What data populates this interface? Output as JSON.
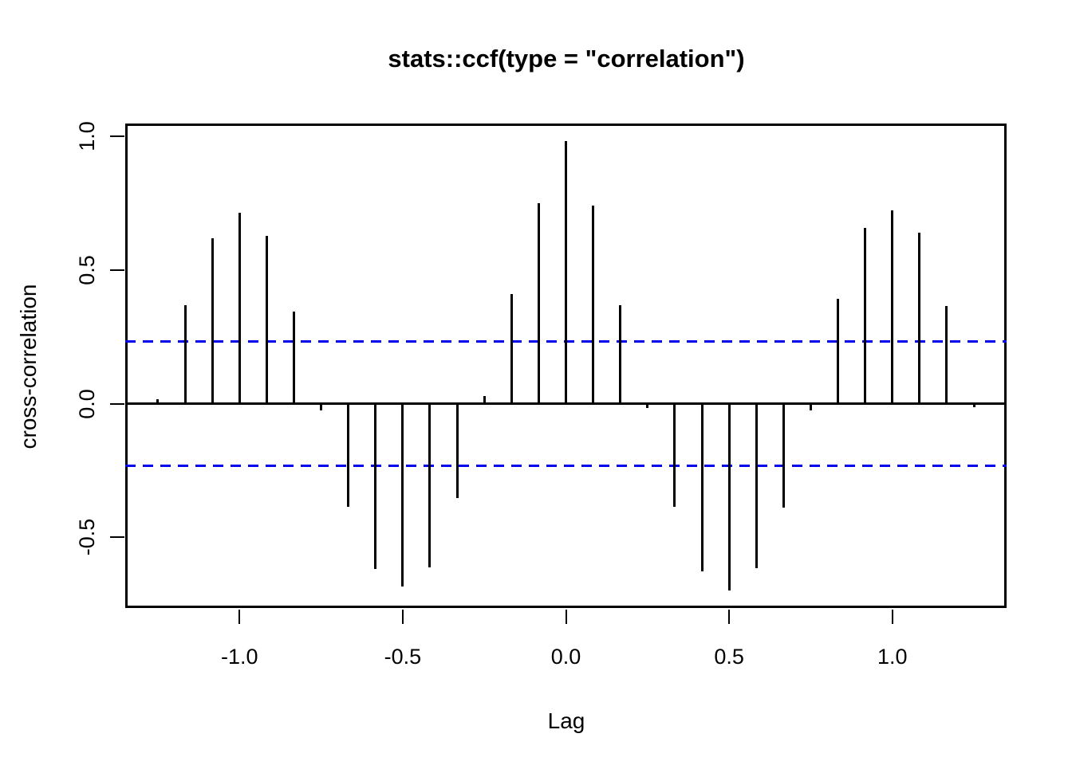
{
  "title": "stats::ccf(type = \"correlation\")",
  "chart_data": {
    "type": "bar",
    "subtype": "ccf-spike-plot",
    "title": "stats::ccf(type = \"correlation\")",
    "xlabel": "Lag",
    "ylabel": "cross-correlation",
    "x": [
      -1.25,
      -1.1667,
      -1.0833,
      -1.0,
      -0.9167,
      -0.8333,
      -0.75,
      -0.6667,
      -0.5833,
      -0.5,
      -0.4167,
      -0.3333,
      -0.25,
      -0.1667,
      -0.0833,
      0.0,
      0.0833,
      0.1667,
      0.25,
      0.3333,
      0.4167,
      0.5,
      0.5833,
      0.6667,
      0.75,
      0.8333,
      0.9167,
      1.0,
      1.0833,
      1.1667,
      1.25
    ],
    "values": [
      0.015,
      0.368,
      0.618,
      0.712,
      0.628,
      0.343,
      -0.025,
      -0.387,
      -0.617,
      -0.684,
      -0.612,
      -0.352,
      0.027,
      0.41,
      0.748,
      0.98,
      0.74,
      0.367,
      -0.015,
      -0.387,
      -0.627,
      -0.697,
      -0.616,
      -0.39,
      -0.026,
      0.392,
      0.657,
      0.723,
      0.639,
      0.364,
      -0.013
    ],
    "confidence_level": 0.231,
    "confidence_lines": [
      0.231,
      -0.231
    ],
    "xlim": [
      -1.35,
      1.35
    ],
    "ylim": [
      -0.764,
      1.047
    ],
    "xticks": [
      -1.0,
      -0.5,
      0.0,
      0.5,
      1.0
    ],
    "xtick_labels": [
      "-1.0",
      "-0.5",
      "0.0",
      "0.5",
      "1.0"
    ],
    "yticks": [
      1.0,
      0.5,
      0.0,
      -0.5
    ],
    "ytick_labels": [
      "1.0",
      "0.5",
      "0.0",
      "-0.5"
    ],
    "grid": false,
    "legend": "none",
    "colors": {
      "spike": "#000000",
      "axis": "#000000",
      "text": "#000000",
      "confidence_dashed": "#0000ee",
      "background": "#ffffff"
    }
  }
}
